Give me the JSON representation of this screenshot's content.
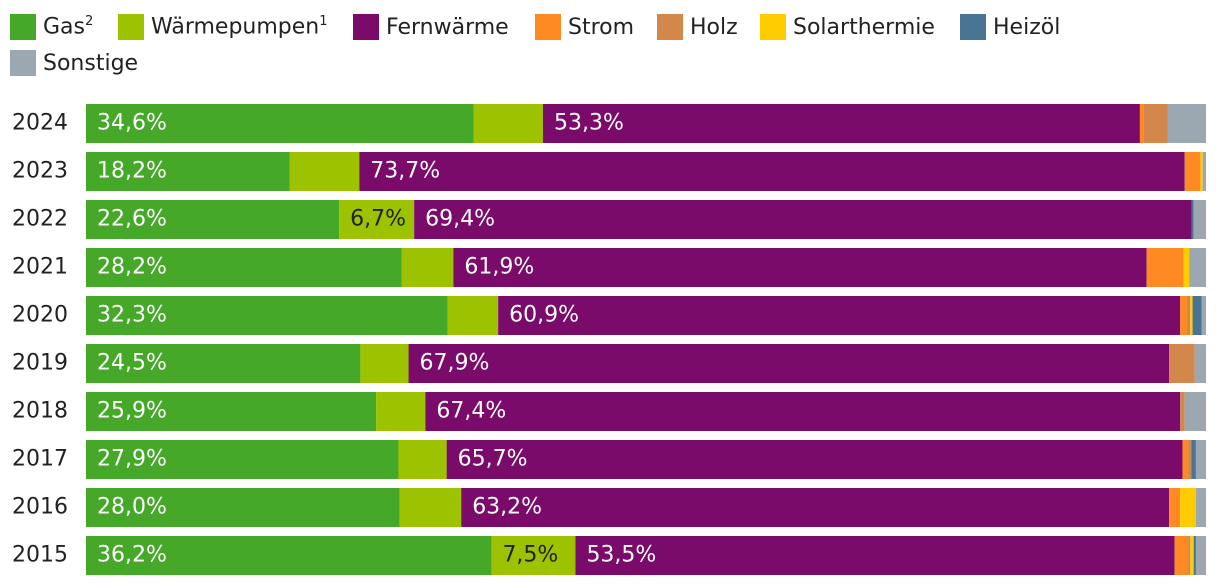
{
  "chart_data": {
    "type": "bar",
    "orientation": "horizontal",
    "stacked": true,
    "title": "",
    "xlabel": "",
    "ylabel": "",
    "xlim": [
      0,
      100
    ],
    "legend_position": "top-left",
    "categories": [
      "2024",
      "2023",
      "2022",
      "2021",
      "2020",
      "2019",
      "2018",
      "2017",
      "2016",
      "2015"
    ],
    "series": [
      {
        "name": "Gas",
        "sup": "2",
        "color": "#45a829",
        "values": [
          34.6,
          18.2,
          22.6,
          28.2,
          32.3,
          24.5,
          25.9,
          27.9,
          28.0,
          36.2
        ]
      },
      {
        "name": "Wärmepumpen",
        "sup": "1",
        "color": "#9cc200",
        "values": [
          6.2,
          6.2,
          6.7,
          4.6,
          4.5,
          4.3,
          4.4,
          4.3,
          5.5,
          7.5
        ]
      },
      {
        "name": "Fernwärme",
        "sup": "",
        "color": "#7b0b6a",
        "values": [
          53.3,
          73.7,
          69.4,
          61.9,
          60.9,
          67.9,
          67.4,
          65.7,
          63.2,
          53.5
        ]
      },
      {
        "name": "Strom",
        "sup": "",
        "color": "#ff8a23",
        "values": [
          0.3,
          1.4,
          0.0,
          3.3,
          0.6,
          0.0,
          0.0,
          0.5,
          1.0,
          1.2
        ]
      },
      {
        "name": "Holz",
        "sup": "",
        "color": "#d3874a",
        "values": [
          2.2,
          0.0,
          0.0,
          0.0,
          0.3,
          2.3,
          0.4,
          0.3,
          0.0,
          0.2
        ]
      },
      {
        "name": "Solarthermie",
        "sup": "",
        "color": "#ffcc00",
        "values": [
          0.0,
          0.2,
          0.0,
          0.5,
          0.2,
          0.0,
          0.0,
          0.0,
          1.4,
          0.3
        ]
      },
      {
        "name": "Heizöl",
        "sup": "",
        "color": "#4a7494",
        "values": [
          0.0,
          0.0,
          0.2,
          0.0,
          0.8,
          0.0,
          0.0,
          0.4,
          0.0,
          0.2
        ]
      },
      {
        "name": "Sonstige",
        "sup": "",
        "color": "#9ba7b1",
        "values": [
          3.4,
          0.3,
          1.1,
          1.5,
          0.4,
          1.0,
          1.9,
          0.9,
          0.9,
          0.9
        ]
      }
    ],
    "data_labels": [
      [
        "34,6%",
        "",
        "53,3%",
        "",
        "",
        "",
        "",
        ""
      ],
      [
        "18,2%",
        "",
        "73,7%",
        "",
        "",
        "",
        "",
        ""
      ],
      [
        "22,6%",
        "6,7%",
        "69,4%",
        "",
        "",
        "",
        "",
        ""
      ],
      [
        "28,2%",
        "",
        "61,9%",
        "",
        "",
        "",
        "",
        ""
      ],
      [
        "32,3%",
        "",
        "60,9%",
        "",
        "",
        "",
        "",
        ""
      ],
      [
        "24,5%",
        "",
        "67,9%",
        "",
        "",
        "",
        "",
        ""
      ],
      [
        "25,9%",
        "",
        "67,4%",
        "",
        "",
        "",
        "",
        ""
      ],
      [
        "27,9%",
        "",
        "65,7%",
        "",
        "",
        "",
        "",
        ""
      ],
      [
        "28,0%",
        "",
        "63,2%",
        "",
        "",
        "",
        "",
        ""
      ],
      [
        "36,2%",
        "7,5%",
        "53,5%",
        "",
        "",
        "",
        "",
        ""
      ]
    ],
    "data_label_colors": [
      "#ffffff",
      "#222222",
      "#ffffff",
      "#222222",
      "#222222",
      "#222222",
      "#222222",
      "#222222"
    ]
  }
}
